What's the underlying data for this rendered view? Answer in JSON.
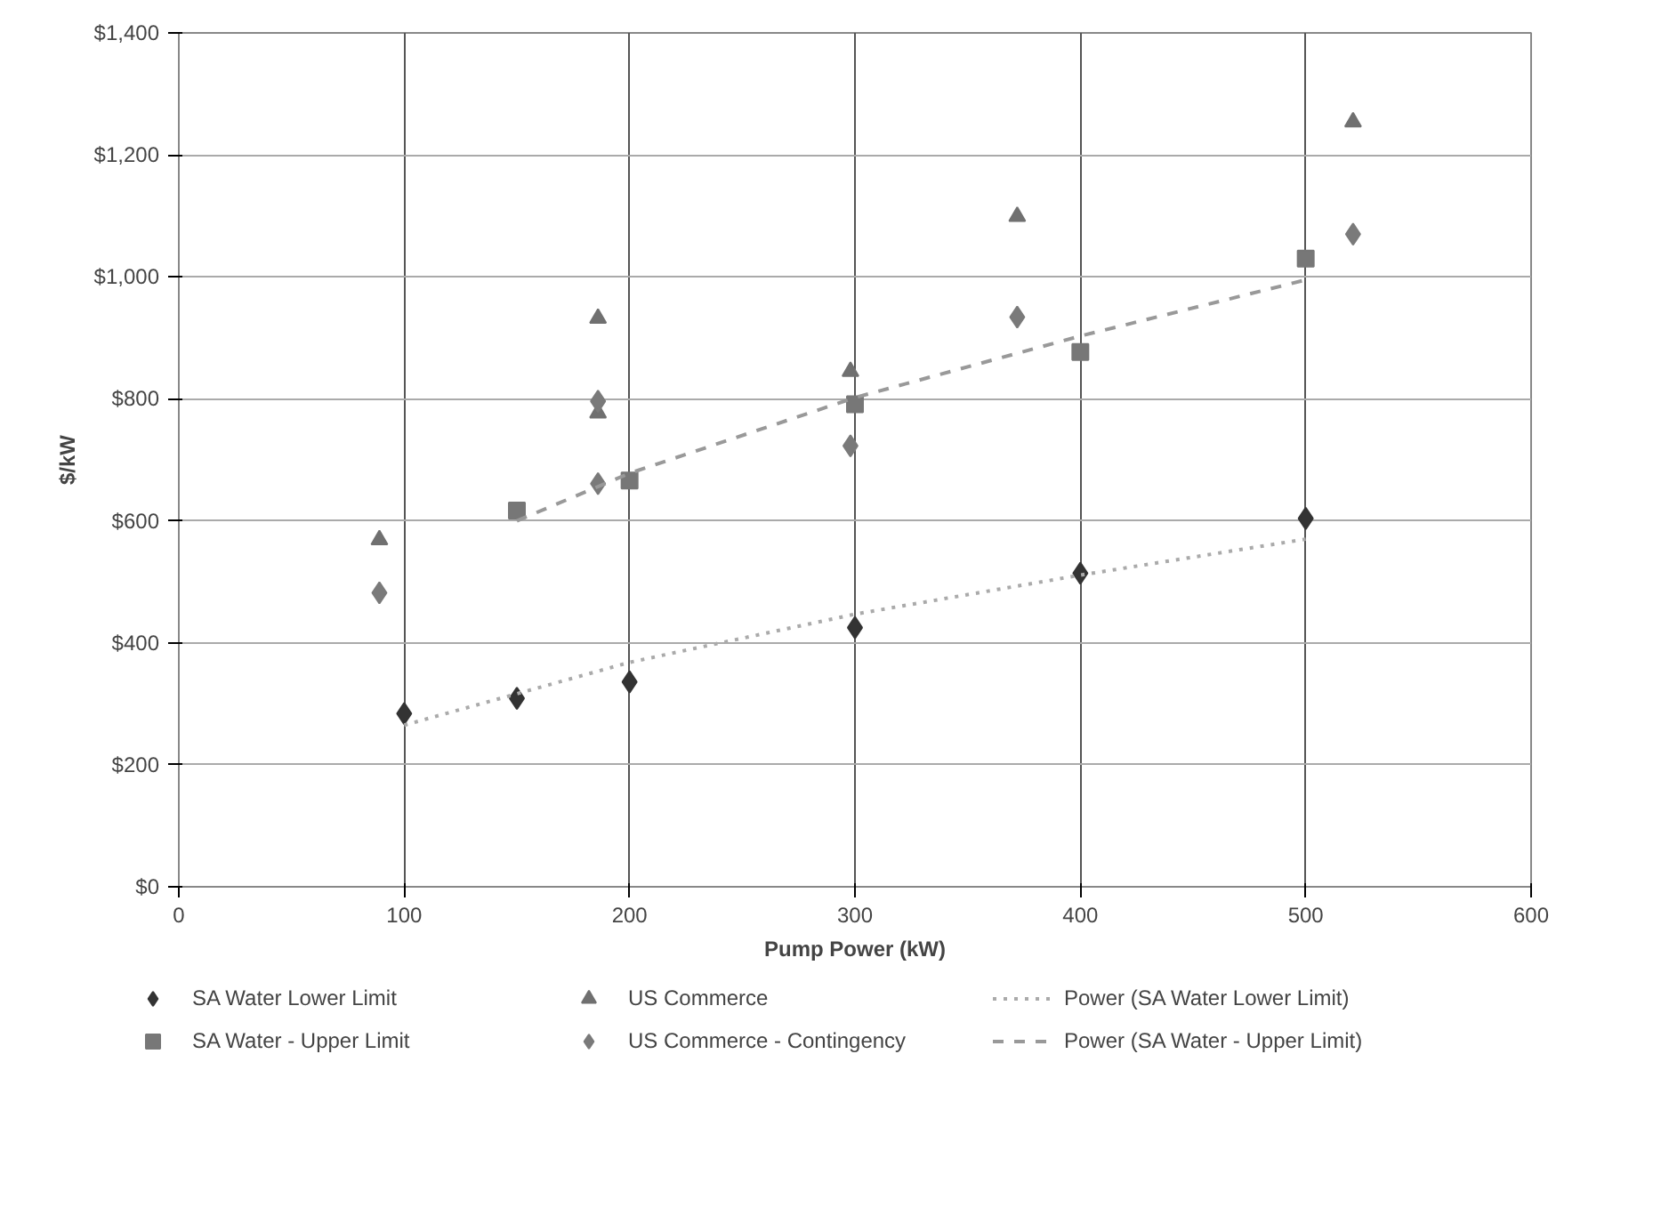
{
  "chart_data": {
    "type": "scatter",
    "xlabel": "Pump Power (kW)",
    "ylabel": "$/kW",
    "xlim": [
      0,
      600
    ],
    "xticks": [
      0,
      100,
      200,
      300,
      400,
      500,
      600
    ],
    "ylim": [
      0,
      1400
    ],
    "yticks": [
      {
        "value": 0,
        "label": "$0"
      },
      {
        "value": 200,
        "label": "$200"
      },
      {
        "value": 400,
        "label": "$400"
      },
      {
        "value": 600,
        "label": "$600"
      },
      {
        "value": 800,
        "label": "$800"
      },
      {
        "value": 1000,
        "label": "$1,000"
      },
      {
        "value": 1200,
        "label": "$1,200"
      },
      {
        "value": 1400,
        "label": "$1,400"
      }
    ],
    "grid": true,
    "legend": "bottom",
    "series": [
      {
        "name": "SA Water Lower Limit",
        "type": "scatter",
        "marker": "diamond",
        "color": "#333333",
        "x": [
          100,
          150,
          200,
          300,
          400,
          500
        ],
        "values": [
          284,
          309,
          336,
          425,
          514,
          604
        ]
      },
      {
        "name": "SA Water - Upper Limit",
        "type": "scatter",
        "marker": "square",
        "color": "#777777",
        "x": [
          150,
          200,
          300,
          400,
          500
        ],
        "values": [
          617,
          666,
          791,
          877,
          1030
        ]
      },
      {
        "name": "US Commerce",
        "type": "scatter",
        "marker": "triangle",
        "color": "#707070",
        "x": [
          89,
          186,
          186,
          298,
          372,
          521
        ],
        "values": [
          569,
          932,
          777,
          845,
          1099,
          1254
        ]
      },
      {
        "name": "US Commerce - Contingency",
        "type": "scatter",
        "marker": "diamond",
        "color": "#7a7a7a",
        "x": [
          89,
          186,
          186,
          298,
          372,
          521
        ],
        "values": [
          482,
          796,
          661,
          723,
          934,
          1070
        ]
      },
      {
        "name": "Power (SA Water Lower Limit)",
        "type": "line",
        "line_style": "dotted",
        "color": "#aaaaaa",
        "x": [
          100,
          200,
          300,
          400,
          500
        ],
        "values": [
          265,
          368,
          447,
          511,
          570
        ]
      },
      {
        "name": "Power (SA Water - Upper Limit)",
        "type": "line",
        "line_style": "dashed",
        "color": "#999999",
        "x": [
          150,
          200,
          300,
          400,
          500
        ],
        "values": [
          600,
          678,
          802,
          903,
          995
        ]
      }
    ]
  }
}
